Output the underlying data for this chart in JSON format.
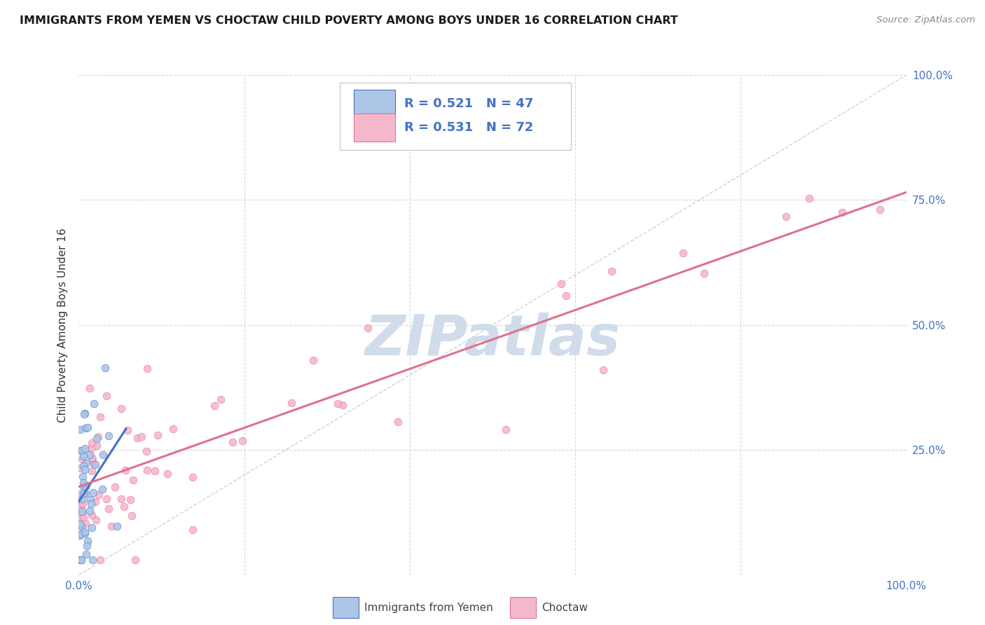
{
  "title": "IMMIGRANTS FROM YEMEN VS CHOCTAW CHILD POVERTY AMONG BOYS UNDER 16 CORRELATION CHART",
  "source": "Source: ZipAtlas.com",
  "ylabel": "Child Poverty Among Boys Under 16",
  "xlim": [
    0,
    1.0
  ],
  "ylim": [
    0,
    1.0
  ],
  "series1_label": "Immigrants from Yemen",
  "series1_R": "0.521",
  "series1_N": "47",
  "series1_color": "#adc6e8",
  "series1_line_color": "#4472c4",
  "series2_label": "Choctaw",
  "series2_R": "0.531",
  "series2_N": "72",
  "series2_color": "#f5b8cb",
  "series2_line_color": "#e07090",
  "diagonal_color": "#c0c8d4",
  "watermark_text": "ZIPatlas",
  "watermark_color": "#d0dcea",
  "background_color": "#ffffff",
  "grid_color": "#d8d8d8",
  "title_color": "#1a1a1a",
  "source_color": "#888888",
  "axis_label_color": "#4472c4",
  "ylabel_color": "#333333"
}
